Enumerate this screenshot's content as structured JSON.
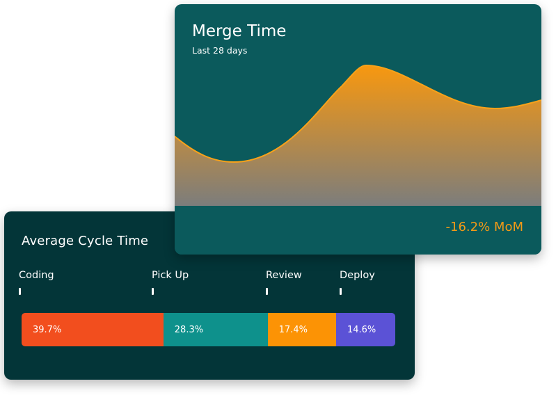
{
  "merge_time": {
    "title": "Merge Time",
    "subtitle": "Last 28 days",
    "change": "-16.2% MoM",
    "colors": {
      "card": "#0b5a5c",
      "area_top": "#f8980f",
      "area_bottom": "#7c7d7c",
      "accent": "#f39a16"
    }
  },
  "cycle_time": {
    "title": "Average Cycle Time",
    "stages": [
      {
        "label": "Coding",
        "percent": "39.7%",
        "share": 39.7,
        "color": "#f24e1e"
      },
      {
        "label": "Pick Up",
        "percent": "28.3%",
        "share": 28.3,
        "color": "#0e918c"
      },
      {
        "label": "Review",
        "percent": "17.4%",
        "share": 17.4,
        "color": "#fc9305"
      },
      {
        "label": "Deploy",
        "percent": "14.6%",
        "share": 14.6,
        "color": "#5b52d6"
      }
    ]
  }
}
